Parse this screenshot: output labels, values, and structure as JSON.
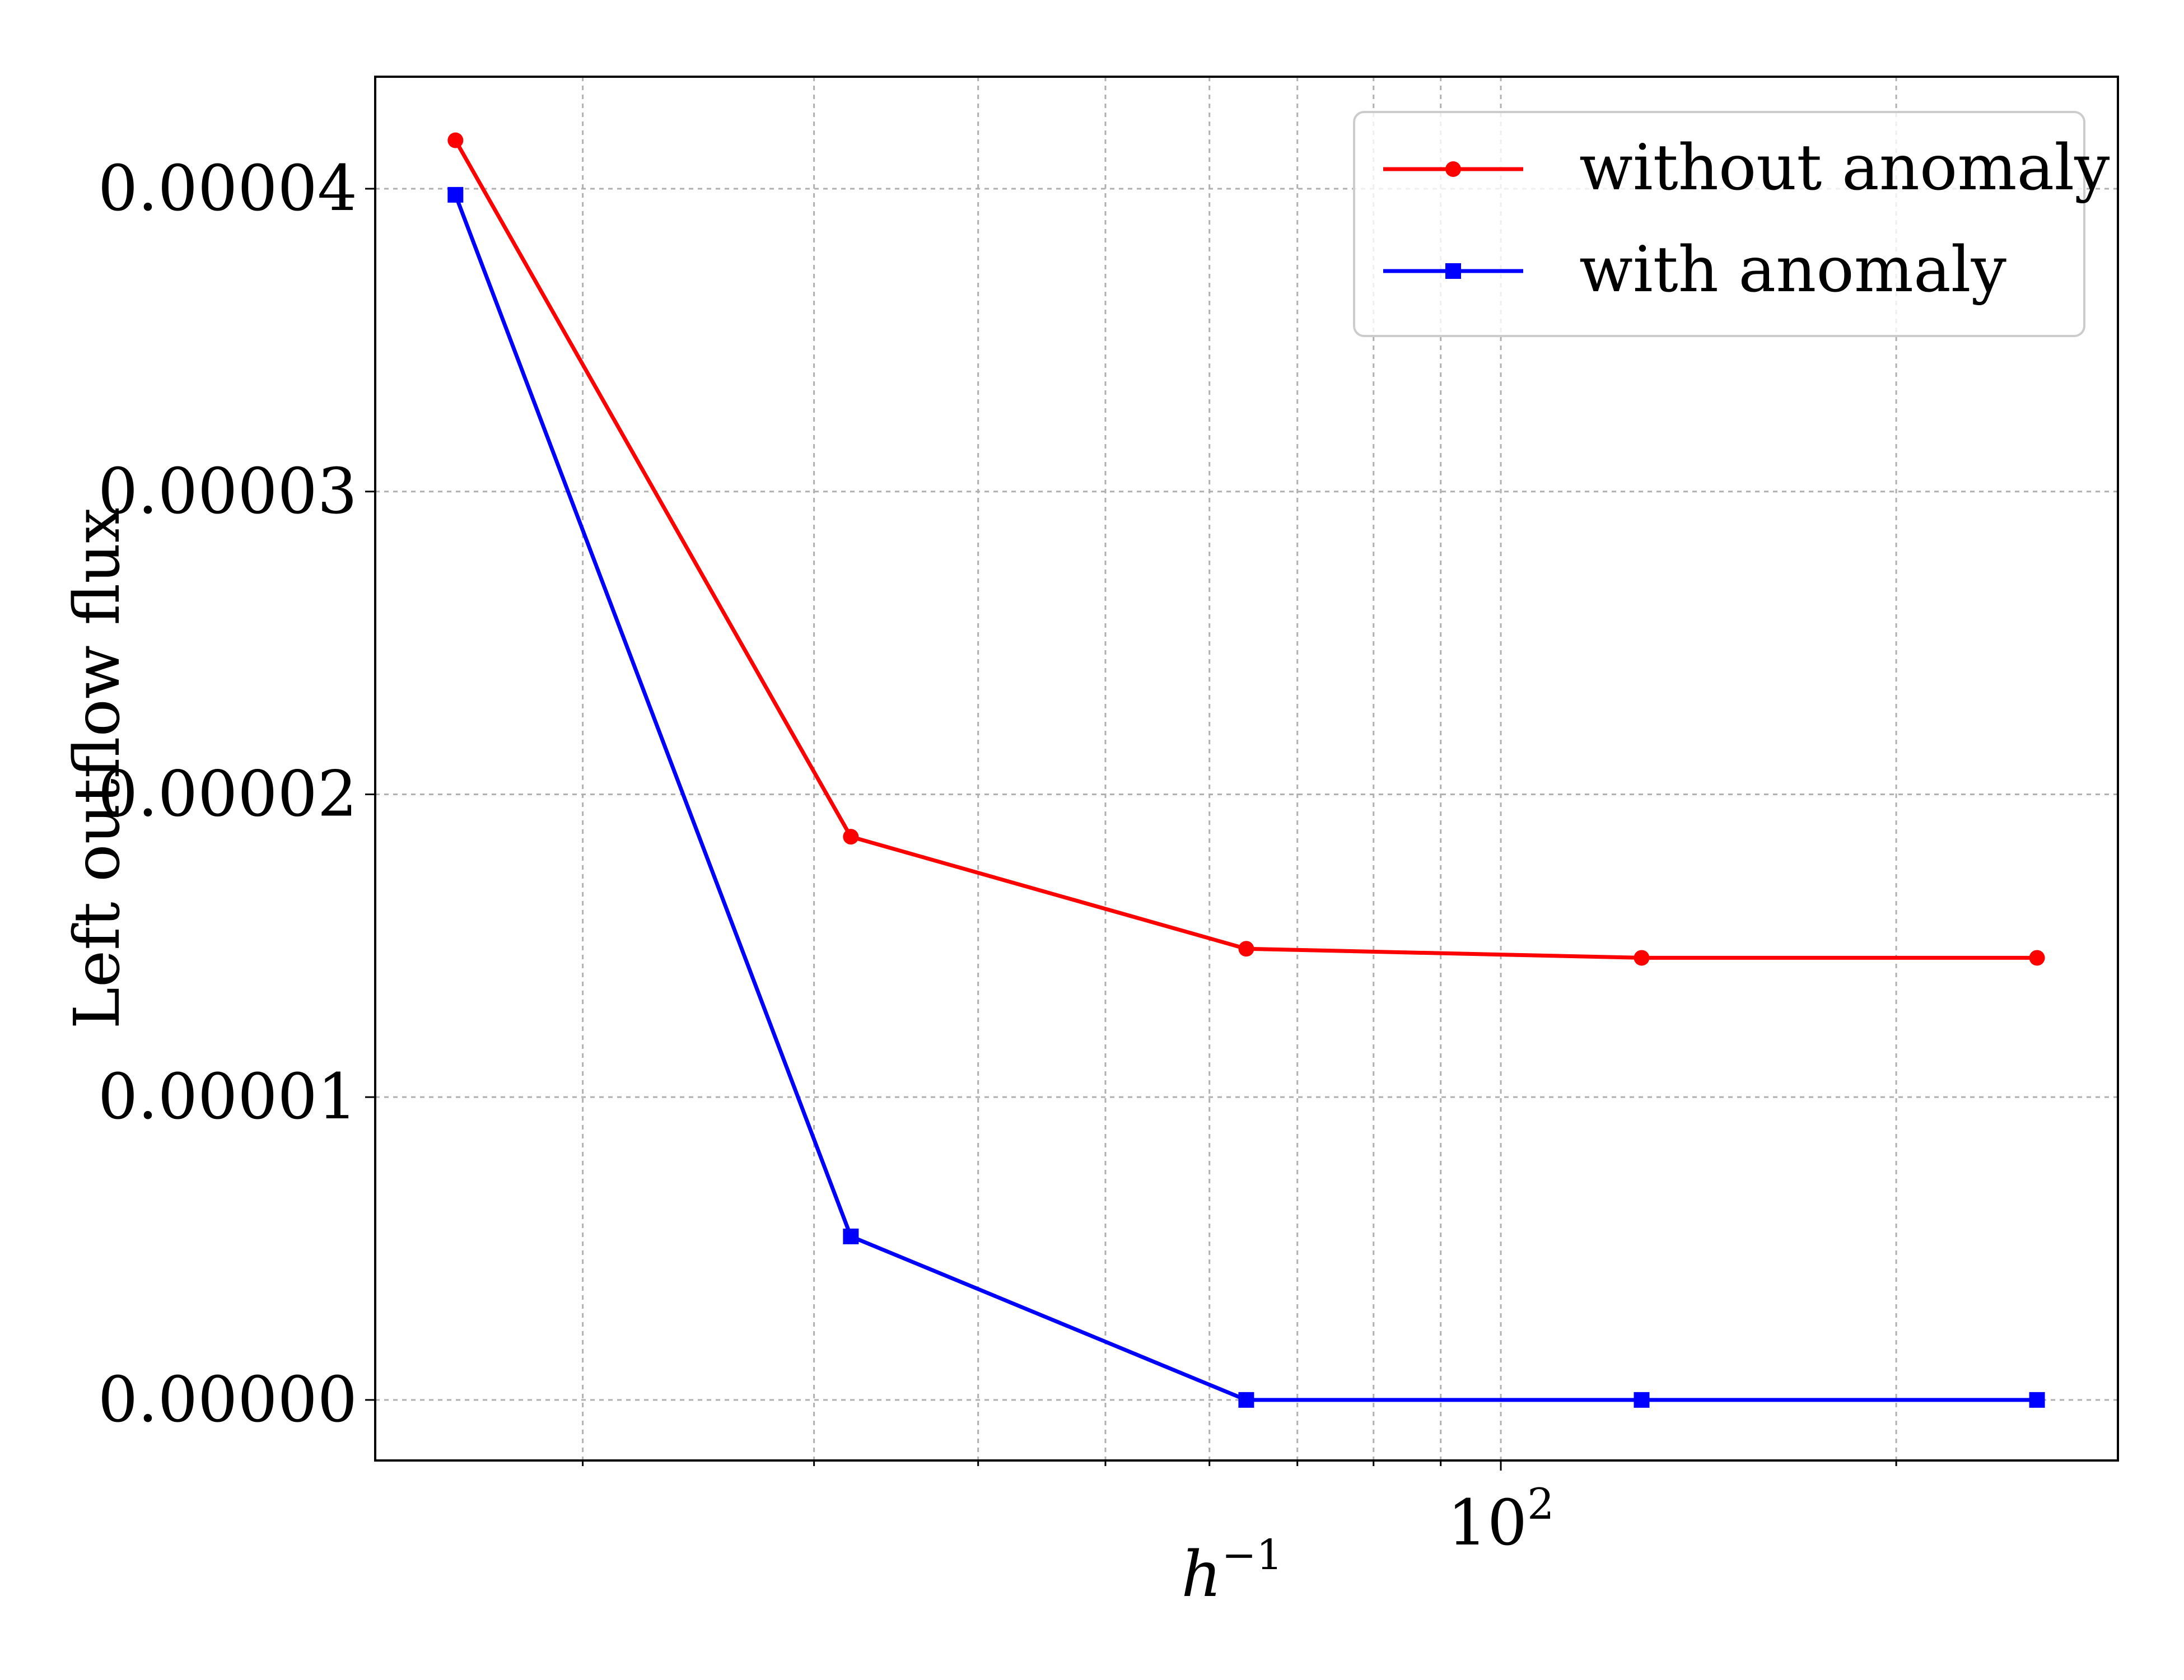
{
  "chart_data": {
    "type": "line",
    "xscale": "log",
    "x": [
      16,
      32,
      64,
      128,
      256
    ],
    "xlim": [
      13.9,
      295
    ],
    "ylim": [
      -2e-06,
      4.37e-05
    ],
    "xlabel": "h",
    "xlabel_superscript": "−1",
    "ylabel": "Left outflow flux",
    "x_tick_labels": [
      {
        "value": 100,
        "base": "10",
        "exp": "2"
      }
    ],
    "y_ticks": [
      0,
      1e-05,
      2e-05,
      3e-05,
      4e-05
    ],
    "y_tick_labels": [
      "0.00000",
      "0.00001",
      "0.00002",
      "0.00003",
      "0.00004"
    ],
    "grid": true,
    "legend_position": "top-right",
    "series": [
      {
        "name": "without anomaly",
        "color": "#ff0000",
        "marker": "circle",
        "values": [
          4.16e-05,
          1.86e-05,
          1.49e-05,
          1.46e-05,
          1.46e-05
        ]
      },
      {
        "name": "with anomaly",
        "color": "#0000ff",
        "marker": "square",
        "values": [
          3.98e-05,
          5.4e-06,
          0.0,
          0.0,
          0.0
        ]
      }
    ]
  }
}
